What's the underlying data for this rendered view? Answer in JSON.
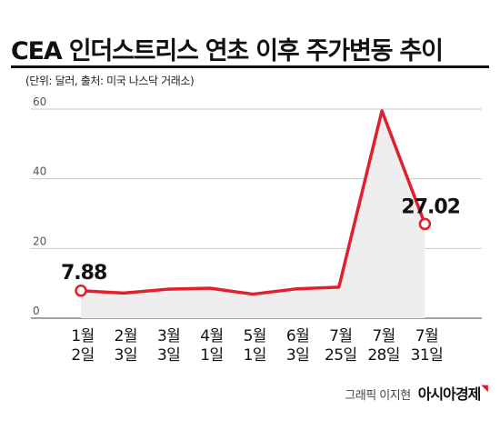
{
  "title": "CEA 인더스트리스 연초 이후 주가변동 추이",
  "subtitle": "(단위: 달러, 출처: 미국 나스닥 거래소)",
  "credit": "그래픽 이지현",
  "publisher": "아시아경제",
  "colors": {
    "line": "#e0202a",
    "area": "#eeeeee",
    "grid": "#c8c8c8",
    "text": "#111111"
  },
  "chart_data": {
    "type": "area",
    "title": "CEA 인더스트리스 연초 이후 주가변동 추이",
    "unit": "달러",
    "source": "미국 나스닥 거래소",
    "categories": [
      [
        "1월",
        "2일"
      ],
      [
        "2월",
        "3일"
      ],
      [
        "3월",
        "3일"
      ],
      [
        "4월",
        "1일"
      ],
      [
        "5월",
        "1일"
      ],
      [
        "6월",
        "3일"
      ],
      [
        "7월",
        "25일"
      ],
      [
        "7월",
        "28일"
      ],
      [
        "7월",
        "31일"
      ]
    ],
    "values": [
      7.88,
      7.2,
      8.3,
      8.6,
      6.9,
      8.4,
      8.9,
      59.5,
      27.02
    ],
    "ylim": [
      0,
      60
    ],
    "yticks": [
      0,
      20,
      40,
      60
    ],
    "grid": true,
    "markers": [
      0,
      8
    ],
    "data_labels": [
      {
        "index": 0,
        "text": "7.88"
      },
      {
        "index": 8,
        "text": "27.02"
      }
    ]
  }
}
